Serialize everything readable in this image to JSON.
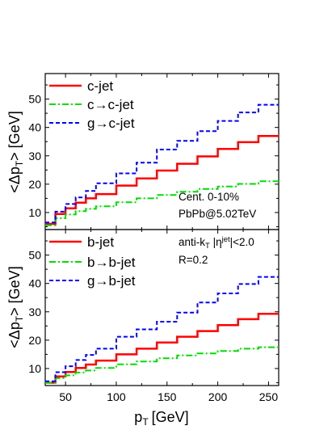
{
  "chart_data": {
    "type": "line",
    "shared_x": {
      "label": "p",
      "label_sub": "T",
      "label_unit": "[GeV]",
      "xlim": [
        30,
        260
      ],
      "ticks": [
        50,
        100,
        150,
        200,
        250
      ],
      "tick_labels": [
        "50",
        "100",
        "150",
        "200",
        "250"
      ],
      "bins": [
        30,
        40,
        50,
        60,
        70,
        80,
        100,
        120,
        140,
        160,
        180,
        200,
        220,
        240,
        260
      ]
    },
    "panels": [
      {
        "id": "top",
        "ylabel": "<Δp",
        "ylabel_sub": "T",
        "ylabel_end": "> [GeV]",
        "ylim": [
          4,
          59
        ],
        "yticks": [
          10,
          20,
          30,
          40,
          50
        ],
        "ytick_labels": [
          "10",
          "20",
          "30",
          "40",
          "50"
        ],
        "series": [
          {
            "name": "c-jet",
            "color": "#ff0000",
            "style": "solid",
            "values": [
              6.0,
              9.5,
              11.5,
              13.5,
              15.0,
              16.5,
              19.5,
              22.0,
              24.8,
              27.2,
              29.8,
              32.4,
              34.8,
              37.0
            ]
          },
          {
            "name": "c→c-jet",
            "color": "#00dd00",
            "style": "dashdot",
            "values": [
              5.5,
              8.0,
              9.3,
              10.5,
              11.3,
              12.2,
              13.6,
              15.0,
              16.2,
              17.3,
              18.3,
              19.2,
              20.1,
              21.0
            ]
          },
          {
            "name": "g→c-jet",
            "color": "#0000ff",
            "style": "dash",
            "values": [
              6.5,
              10.3,
              13.0,
              15.3,
              17.6,
              20.3,
              23.8,
              27.6,
              32.2,
              35.3,
              38.7,
              42.3,
              45.3,
              48.0
            ]
          }
        ],
        "annotations": [
          "Cent. 0-10%",
          "PbPb@5.02TeV"
        ]
      },
      {
        "id": "bottom",
        "ylabel": "<Δp",
        "ylabel_sub": "T",
        "ylabel_end": "> [GeV]",
        "ylim": [
          4,
          59
        ],
        "yticks": [
          10,
          20,
          30,
          40,
          50
        ],
        "ytick_labels": [
          "10",
          "20",
          "30",
          "40",
          "50"
        ],
        "series": [
          {
            "name": "b-jet",
            "color": "#ff0000",
            "style": "solid",
            "values": [
              5.0,
              7.2,
              8.8,
              10.2,
              11.4,
              12.8,
              15.0,
              17.0,
              19.2,
              21.2,
              23.2,
              25.3,
              27.4,
              29.3
            ]
          },
          {
            "name": "b→b-jet",
            "color": "#00dd00",
            "style": "dashdot",
            "values": [
              5.0,
              6.6,
              7.6,
              8.6,
              9.3,
              10.2,
              11.5,
              12.5,
              13.6,
              14.6,
              15.3,
              16.2,
              17.0,
              17.5
            ]
          },
          {
            "name": "g→b-jet",
            "color": "#0000ff",
            "style": "dash",
            "values": [
              5.5,
              8.7,
              10.8,
              13.0,
              14.8,
              17.0,
              21.2,
              23.8,
              26.5,
              29.7,
              33.3,
              36.5,
              39.8,
              42.3
            ]
          }
        ],
        "annotations": [
          "anti-k",
          "T",
          " |η",
          "jet",
          "|<2.0",
          "R=0.2"
        ]
      }
    ]
  }
}
